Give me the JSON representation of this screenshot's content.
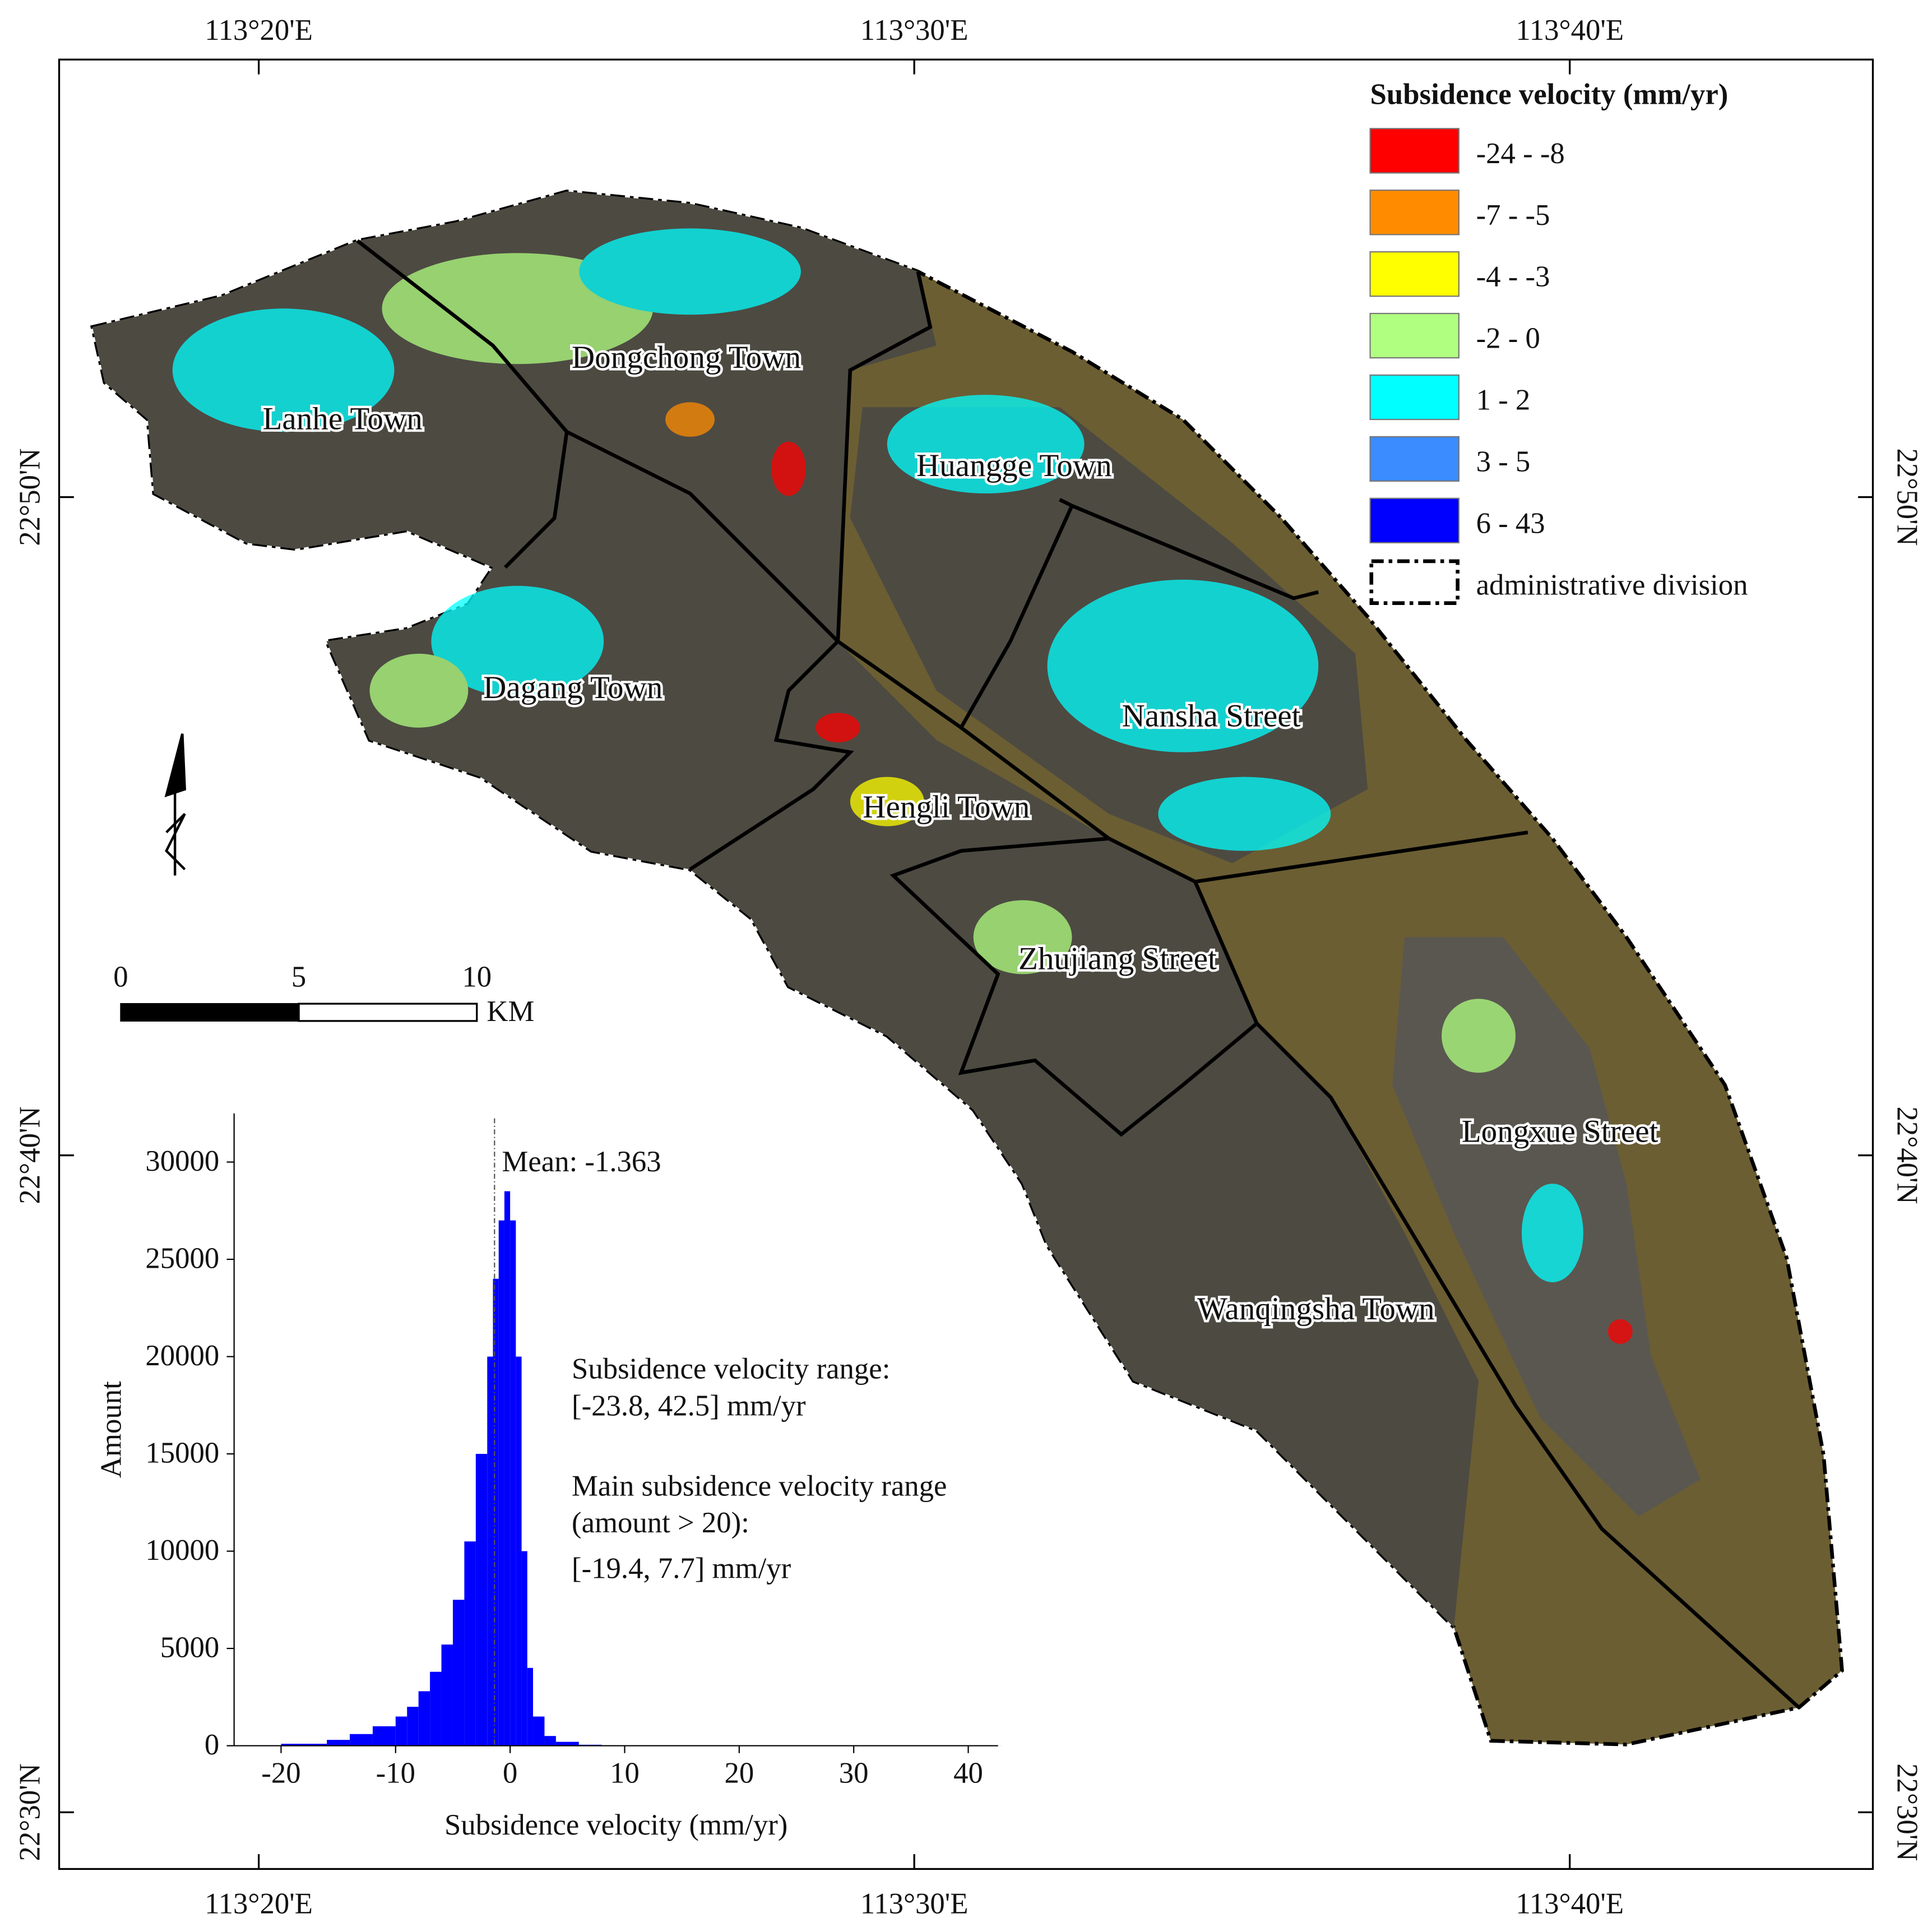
{
  "map": {
    "legend": {
      "title": "Subsidence velocity (mm/yr)",
      "items": [
        {
          "label": "-24 - -8",
          "color": "#ff0000"
        },
        {
          "label": "-7 - -5",
          "color": "#ff8c00"
        },
        {
          "label": "-4 - -3",
          "color": "#ffff00"
        },
        {
          "label": "-2 - 0",
          "color": "#b0ff80"
        },
        {
          "label": "1 - 2",
          "color": "#00ffff"
        },
        {
          "label": "3 - 5",
          "color": "#3a8cff"
        },
        {
          "label": "6 - 43",
          "color": "#0000ff"
        },
        {
          "label": "administrative division"
        }
      ]
    },
    "longitude_labels": [
      "113°20'E",
      "113°30'E",
      "113°40'E"
    ],
    "latitude_labels": [
      "22°50'N",
      "22°40'N",
      "22°30'N"
    ],
    "place_labels": [
      "Lanhe Town",
      "Dongchong Town",
      "Huangge Town",
      "Dagang Town",
      "Nansha Street",
      "Hengli Town",
      "Zhujiang Street",
      "Longxue Street",
      "Wanqingsha Town"
    ],
    "scale_bar": {
      "ticks": [
        0,
        5,
        10
      ],
      "unit": "KM"
    }
  },
  "chart_data": {
    "type": "histogram",
    "bins": [
      -24,
      -20,
      -16,
      -14,
      -12,
      -10,
      -9,
      -8,
      -7,
      -6,
      -5,
      -4,
      -3,
      -2,
      -1.5,
      -1,
      -0.5,
      0,
      0.5,
      1,
      1.5,
      2,
      3,
      4,
      6,
      8,
      12,
      43
    ],
    "counts": [
      20,
      100,
      300,
      600,
      1000,
      1500,
      2000,
      2800,
      3800,
      5200,
      7500,
      10500,
      15000,
      20000,
      24000,
      27000,
      28500,
      27000,
      20000,
      10000,
      4000,
      1500,
      500,
      200,
      50,
      10,
      2
    ],
    "color": "#0000ff",
    "xlim": [
      -24.1,
      42.6
    ],
    "ylim": [
      0,
      32500
    ],
    "xticks": [
      -20,
      -10,
      0,
      10,
      20,
      30,
      40
    ],
    "yticks": [
      0,
      5000,
      10000,
      15000,
      20000,
      25000,
      30000
    ],
    "xlabel": "Subsidence velocity (mm/yr)",
    "ylabel": "Amount",
    "mean_line": {
      "value": -1.363,
      "label": "Mean: -1.363"
    },
    "annotations": [
      "Subsidence velocity range:",
      "[-23.8, 42.5] mm/yr",
      "Main subsidence velocity range",
      "(amount > 20):",
      "[-19.4, 7.7] mm/yr"
    ]
  }
}
